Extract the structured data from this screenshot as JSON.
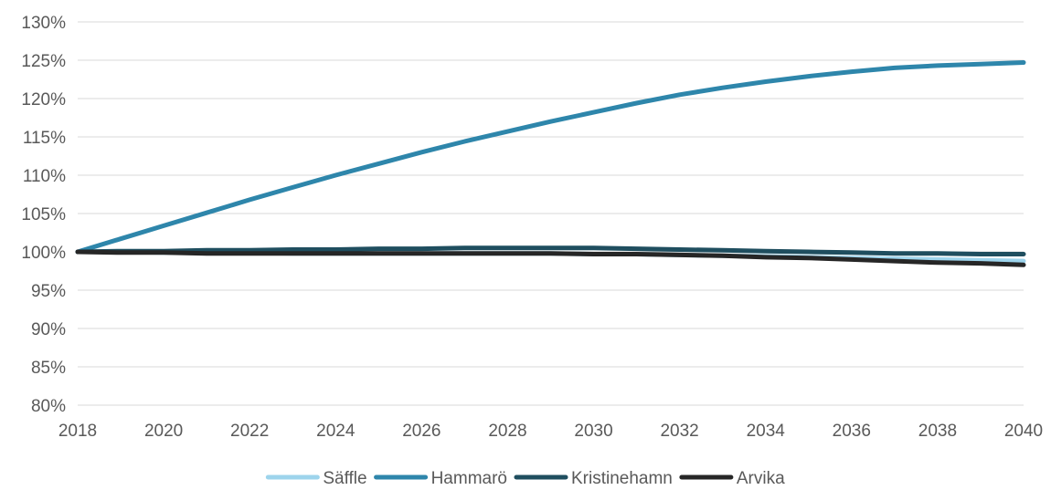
{
  "chart_data": {
    "type": "line",
    "title": "",
    "xlabel": "",
    "ylabel": "",
    "x": [
      2018,
      2019,
      2020,
      2021,
      2022,
      2023,
      2024,
      2025,
      2026,
      2027,
      2028,
      2029,
      2030,
      2031,
      2032,
      2033,
      2034,
      2035,
      2036,
      2037,
      2038,
      2039,
      2040
    ],
    "x_ticks": [
      "2018",
      "2020",
      "2022",
      "2024",
      "2026",
      "2028",
      "2030",
      "2032",
      "2034",
      "2036",
      "2038",
      "2040"
    ],
    "xlim": [
      2018,
      2040
    ],
    "y_ticks": [
      "80%",
      "85%",
      "90%",
      "95%",
      "100%",
      "105%",
      "110%",
      "115%",
      "120%",
      "125%",
      "130%"
    ],
    "ylim": [
      80,
      130
    ],
    "y_unit": "%",
    "grid": true,
    "legend_position": "bottom-center",
    "series": [
      {
        "name": "Säffle",
        "color": "#9dd4ec",
        "values": [
          100,
          100.0,
          99.9,
          99.9,
          99.9,
          99.8,
          99.8,
          99.8,
          99.8,
          99.8,
          99.8,
          99.8,
          99.7,
          99.7,
          99.6,
          99.5,
          99.4,
          99.3,
          99.2,
          99.1,
          99.0,
          98.9,
          98.8
        ]
      },
      {
        "name": "Hammarö",
        "color": "#2e86ab",
        "values": [
          100,
          101.7,
          103.4,
          105.1,
          106.8,
          108.4,
          110.0,
          111.5,
          113.0,
          114.4,
          115.7,
          117.0,
          118.2,
          119.4,
          120.5,
          121.4,
          122.2,
          122.9,
          123.5,
          124.0,
          124.3,
          124.5,
          124.7
        ]
      },
      {
        "name": "Kristinehamn",
        "color": "#1f4e5f",
        "values": [
          100,
          100.1,
          100.1,
          100.2,
          100.2,
          100.3,
          100.3,
          100.4,
          100.4,
          100.5,
          100.5,
          100.5,
          100.5,
          100.4,
          100.3,
          100.2,
          100.1,
          100.0,
          99.9,
          99.8,
          99.8,
          99.7,
          99.7
        ]
      },
      {
        "name": "Arvika",
        "color": "#262626",
        "values": [
          100,
          99.9,
          99.9,
          99.8,
          99.8,
          99.8,
          99.8,
          99.8,
          99.8,
          99.8,
          99.8,
          99.8,
          99.7,
          99.7,
          99.6,
          99.5,
          99.3,
          99.2,
          99.0,
          98.8,
          98.6,
          98.5,
          98.3
        ]
      }
    ]
  }
}
